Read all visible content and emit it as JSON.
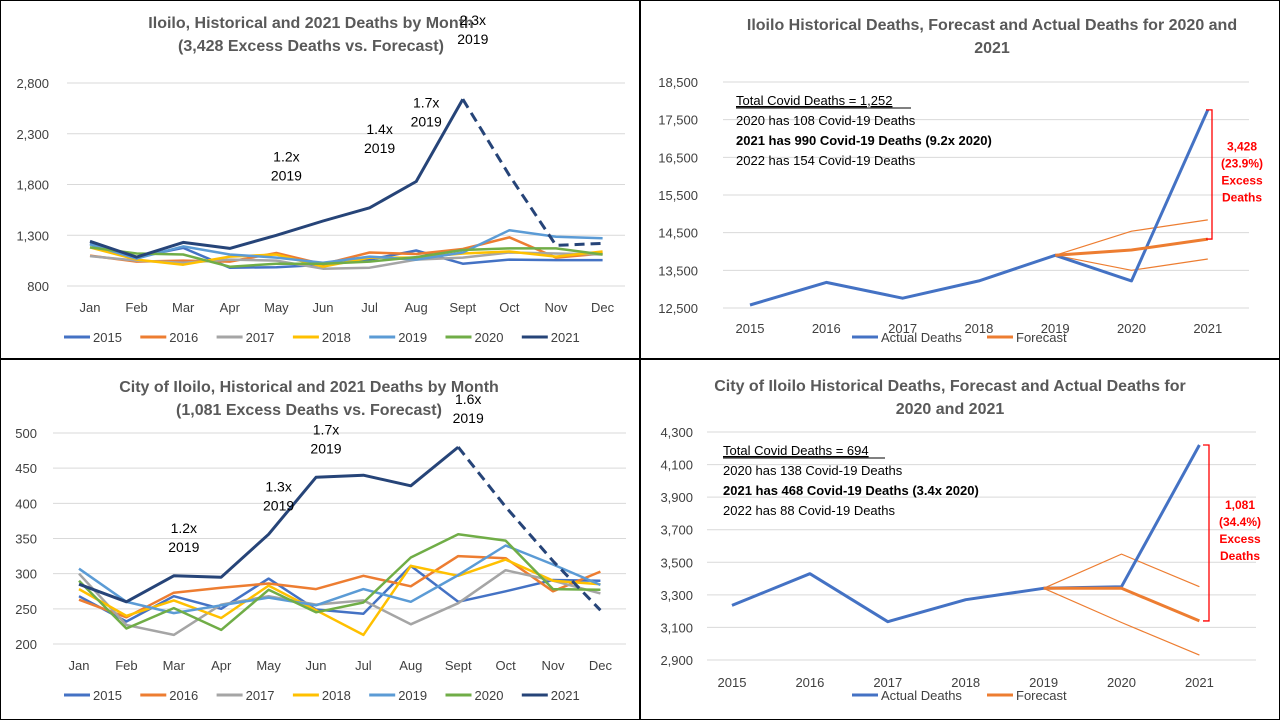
{
  "months": [
    "Jan",
    "Feb",
    "Mar",
    "Apr",
    "May",
    "Jun",
    "Jul",
    "Aug",
    "Sept",
    "Oct",
    "Nov",
    "Dec"
  ],
  "years": [
    "2015",
    "2016",
    "2017",
    "2018",
    "2019",
    "2020",
    "2021"
  ],
  "colors": {
    "2015": "#4472c4",
    "2016": "#ed7d31",
    "2017": "#a5a5a5",
    "2018": "#ffc000",
    "2019": "#5b9bd5",
    "2020": "#70ad47",
    "2021": "#264478",
    "actual": "#4472c4",
    "forecast": "#ed7d31",
    "excess": "#ff0000",
    "grid": "#d9d9d9"
  },
  "chart_data": [
    {
      "type": "line",
      "title": [
        "Iloilo, Historical and 2021 Deaths by Month",
        "(3,428 Excess Deaths vs. Forecast)"
      ],
      "ylim": [
        800,
        2800
      ],
      "yticks": [
        800,
        1300,
        1800,
        2300,
        2800
      ],
      "ytick_labels": [
        "800",
        "1,300",
        "1,800",
        "2,300",
        "2,800"
      ],
      "series": [
        {
          "name": "2015",
          "values": [
            1220,
            1085,
            1175,
            980,
            985,
            1010,
            1060,
            1150,
            1020,
            1060,
            1055,
            1055
          ]
        },
        {
          "name": "2016",
          "values": [
            1100,
            1040,
            1050,
            1040,
            1125,
            1015,
            1130,
            1115,
            1165,
            1280,
            1080,
            1120
          ]
        },
        {
          "name": "2017",
          "values": [
            1095,
            1050,
            1030,
            1060,
            1050,
            970,
            980,
            1060,
            1080,
            1130,
            1120,
            1110
          ]
        },
        {
          "name": "2018",
          "values": [
            1180,
            1060,
            1010,
            1090,
            1110,
            990,
            1080,
            1080,
            1120,
            1140,
            1090,
            1140
          ]
        },
        {
          "name": "2019",
          "values": [
            1210,
            1070,
            1190,
            1110,
            1080,
            1030,
            1090,
            1060,
            1130,
            1350,
            1285,
            1270
          ]
        },
        {
          "name": "2020",
          "values": [
            1180,
            1120,
            1110,
            990,
            1020,
            1020,
            1040,
            1085,
            1155,
            1170,
            1170,
            1110
          ]
        },
        {
          "name": "2021",
          "values": [
            1240,
            1085,
            1230,
            1170,
            1300,
            1440,
            1570,
            1830,
            2640,
            1890,
            1200,
            1220
          ],
          "dashed_from_index": 8
        }
      ],
      "annotations": [
        {
          "month_index": 4,
          "lines": [
            "1.2x",
            "2019"
          ]
        },
        {
          "month_index": 6,
          "lines": [
            "1.4x",
            "2019"
          ]
        },
        {
          "month_index": 7,
          "lines": [
            "1.7x",
            "2019"
          ]
        },
        {
          "month_index": 8,
          "lines": [
            "2.3x",
            "2019"
          ]
        }
      ]
    },
    {
      "type": "line",
      "title": [
        "Iloilo Historical Deaths, Forecast and Actual Deaths for 2020 and",
        "2021"
      ],
      "categories": [
        "2015",
        "2016",
        "2017",
        "2018",
        "2019",
        "2020",
        "2021"
      ],
      "ylim": [
        12500,
        18500
      ],
      "yticks": [
        12500,
        13500,
        14500,
        15500,
        16500,
        17500,
        18500
      ],
      "ytick_labels": [
        "12,500",
        "13,500",
        "14,500",
        "15,500",
        "16,500",
        "17,500",
        "18,500"
      ],
      "actual": [
        12580,
        13180,
        12760,
        13220,
        13900,
        13220,
        17760
      ],
      "forecast": {
        "start_index": 4,
        "values": [
          13900,
          14040,
          14330
        ],
        "upper": [
          13900,
          14540,
          14840
        ],
        "lower": [
          13900,
          13500,
          13800
        ]
      },
      "legend": [
        "Actual Deaths",
        "Forecast"
      ],
      "info": {
        "total": "Total Covid Deaths = 1,252",
        "lines": [
          "2020 has 108 Covid-19 Deaths",
          "2021 has 990 Covid-19 Deaths (9.2x 2020)",
          "2022 has 154 Covid-19 Deaths"
        ],
        "bold_index": 1
      },
      "excess": {
        "from": 14330,
        "to": 17760,
        "label": [
          "3,428",
          "(23.9%)",
          "Excess",
          "Deaths"
        ]
      }
    },
    {
      "type": "line",
      "title": [
        "City of Iloilo, Historical and 2021 Deaths by Month",
        "(1,081 Excess Deaths vs. Forecast)"
      ],
      "ylim": [
        200,
        500
      ],
      "yticks": [
        200,
        250,
        300,
        350,
        400,
        450,
        500
      ],
      "ytick_labels": [
        "200",
        "250",
        "300",
        "350",
        "400",
        "450",
        "500"
      ],
      "series": [
        {
          "name": "2015",
          "values": [
            268,
            232,
            268,
            250,
            293,
            249,
            243,
            311,
            260,
            275,
            291,
            290
          ]
        },
        {
          "name": "2016",
          "values": [
            263,
            238,
            273,
            280,
            286,
            278,
            297,
            282,
            325,
            322,
            275,
            303
          ]
        },
        {
          "name": "2017",
          "values": [
            300,
            227,
            213,
            256,
            268,
            256,
            262,
            228,
            258,
            305,
            290,
            272
          ]
        },
        {
          "name": "2018",
          "values": [
            278,
            240,
            262,
            237,
            283,
            248,
            213,
            311,
            297,
            320,
            290,
            285
          ]
        },
        {
          "name": "2019",
          "values": [
            307,
            260,
            244,
            255,
            266,
            255,
            278,
            260,
            298,
            340,
            313,
            284
          ]
        },
        {
          "name": "2020",
          "values": [
            290,
            222,
            251,
            220,
            277,
            245,
            259,
            323,
            356,
            347,
            278,
            277
          ]
        },
        {
          "name": "2021",
          "values": [
            285,
            260,
            297,
            295,
            356,
            437,
            440,
            425,
            480,
            395,
            318,
            248
          ],
          "dashed_from_index": 8
        }
      ],
      "annotations": [
        {
          "month_index": 2,
          "lines": [
            "1.2x",
            "2019"
          ]
        },
        {
          "month_index": 4,
          "lines": [
            "1.3x",
            "2019"
          ]
        },
        {
          "month_index": 5,
          "lines": [
            "1.7x",
            "2019"
          ]
        },
        {
          "month_index": 8,
          "lines": [
            "1.6x",
            "2019"
          ]
        }
      ]
    },
    {
      "type": "line",
      "title": [
        "City of Iloilo Historical Deaths, Forecast and Actual Deaths for",
        "2020 and 2021"
      ],
      "categories": [
        "2015",
        "2016",
        "2017",
        "2018",
        "2019",
        "2020",
        "2021"
      ],
      "ylim": [
        2900,
        4300
      ],
      "yticks": [
        2900,
        3100,
        3300,
        3500,
        3700,
        3900,
        4100,
        4300
      ],
      "ytick_labels": [
        "2,900",
        "3,100",
        "3,300",
        "3,500",
        "3,700",
        "3,900",
        "4,100",
        "4,300"
      ],
      "actual": [
        3235,
        3430,
        3135,
        3270,
        3340,
        3350,
        4220
      ],
      "forecast": {
        "start_index": 4,
        "values": [
          3340,
          3340,
          3140
        ],
        "upper": [
          3340,
          3550,
          3350
        ],
        "lower": [
          3340,
          3130,
          2930
        ]
      },
      "legend": [
        "Actual Deaths",
        "Forecast"
      ],
      "info": {
        "total": "Total Covid Deaths = 694",
        "lines": [
          "2020 has 138 Covid-19 Deaths",
          "2021 has 468 Covid-19 Deaths (3.4x 2020)",
          "2022 has 88 Covid-19 Deaths"
        ],
        "bold_index": 1
      },
      "excess": {
        "from": 3140,
        "to": 4220,
        "label": [
          "1,081",
          "(34.4%)",
          "Excess",
          "Deaths"
        ]
      }
    }
  ]
}
